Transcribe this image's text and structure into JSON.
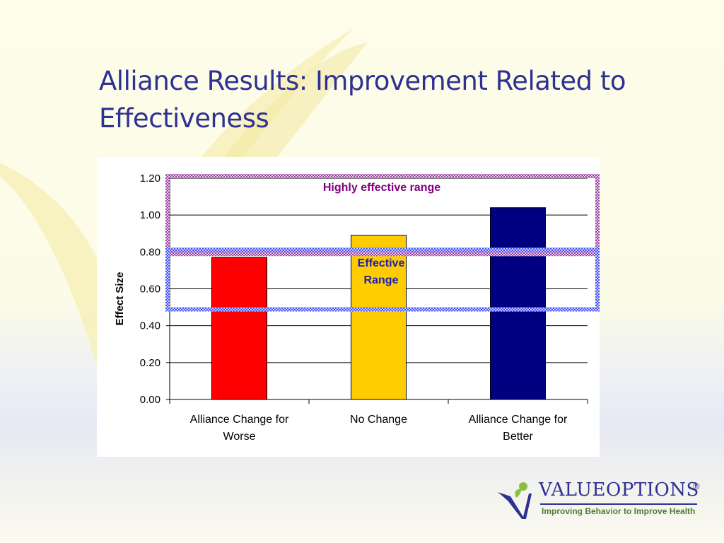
{
  "slide": {
    "title": "Alliance Results: Improvement Related to Effectiveness"
  },
  "chart_data": {
    "type": "bar",
    "categories": [
      "Alliance Change for Worse",
      "No Change",
      "Alliance Change for Better"
    ],
    "category_lines": [
      [
        "Alliance Change for",
        "Worse"
      ],
      [
        "No Change"
      ],
      [
        "Alliance Change for",
        "Better"
      ]
    ],
    "values": [
      0.77,
      0.89,
      1.04
    ],
    "colors": [
      "#ff0000",
      "#ffcc00",
      "#000080"
    ],
    "xlabel": "",
    "ylabel": "Effect Size",
    "ylim": [
      0,
      1.2
    ],
    "yticks": [
      "0.00",
      "0.20",
      "0.40",
      "0.60",
      "0.80",
      "1.00",
      "1.20"
    ],
    "grid": true,
    "ranges": [
      {
        "label_lines": [
          "Highly effective range"
        ],
        "from": 0.8,
        "to": 1.2,
        "color": "#9933a0"
      },
      {
        "label_lines": [
          "Effective",
          "Range"
        ],
        "from": 0.5,
        "to": 0.8,
        "color": "#3344ff"
      }
    ]
  },
  "logo": {
    "name": "VALUEOPTIONS",
    "registered": "®",
    "tagline": "Improving Behavior to Improve Health",
    "colors": {
      "check": "#2e3192",
      "leaf": "#8cbf3f"
    }
  }
}
